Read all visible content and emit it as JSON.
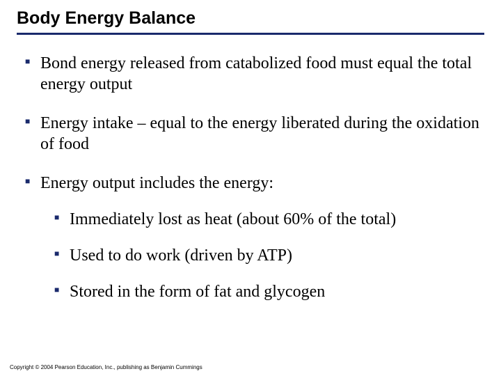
{
  "slide": {
    "title": "Body Energy Balance",
    "title_fontsize": 25,
    "title_font": "Arial",
    "title_weight": "bold",
    "rule_color": "#1a2a6c",
    "bullet_color": "#1a2a6c",
    "body_font": "Times New Roman",
    "body_fontsize": 24,
    "background_color": "#ffffff",
    "bullets": [
      {
        "text": "Bond energy released from catabolized food must equal the total energy output",
        "children": []
      },
      {
        "text": "Energy intake – equal to the energy liberated during the oxidation of food",
        "children": []
      },
      {
        "text": "Energy output includes the energy:",
        "children": [
          {
            "text": "Immediately lost as heat (about 60% of the total)"
          },
          {
            "text": "Used to do work (driven by ATP)"
          },
          {
            "text": "Stored in the form of fat and glycogen"
          }
        ]
      }
    ],
    "copyright": "Copyright © 2004 Pearson Education, Inc., publishing as Benjamin Cummings"
  }
}
